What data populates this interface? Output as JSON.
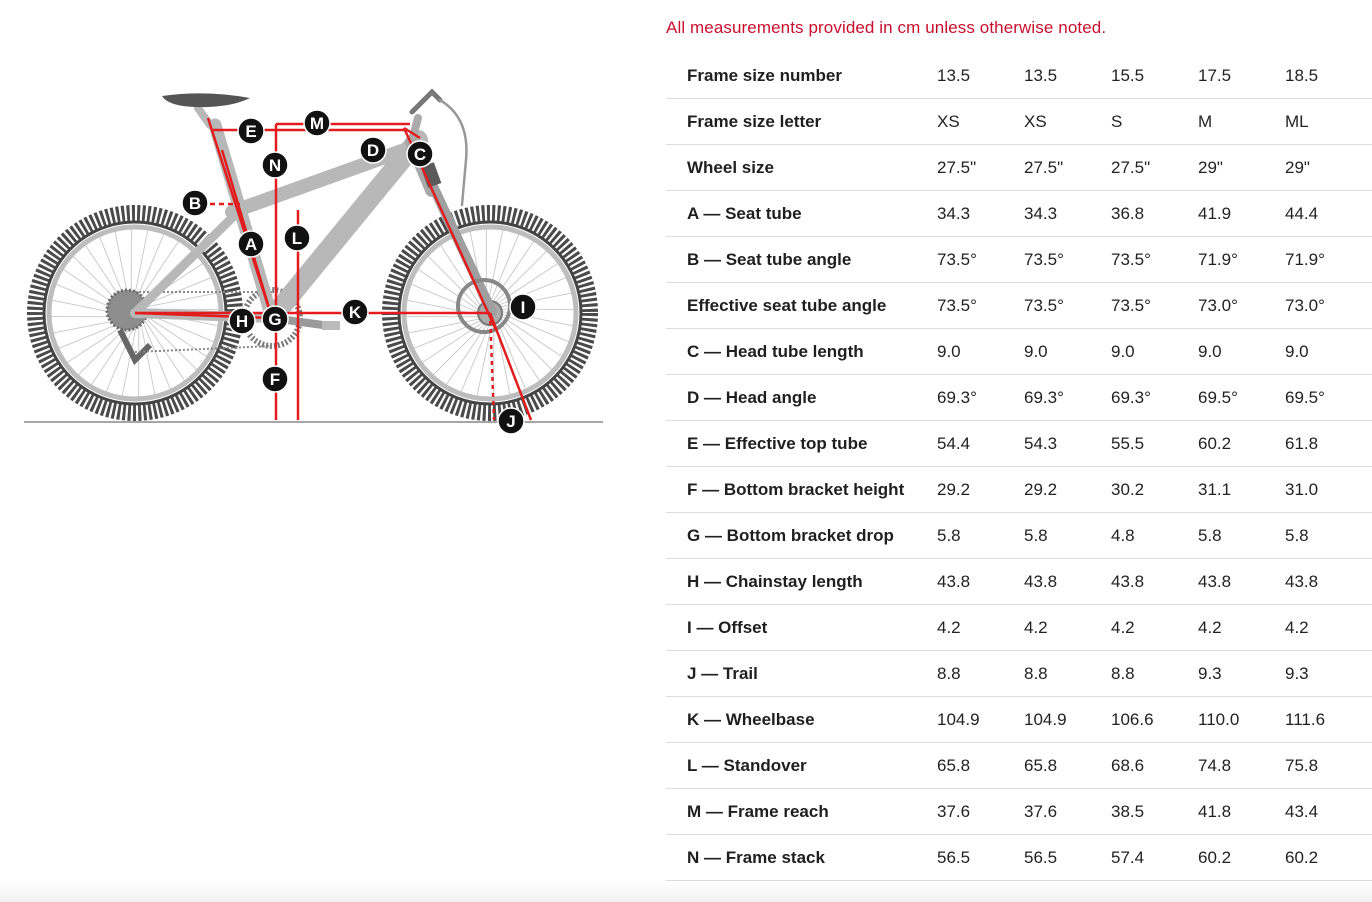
{
  "notice": "All measurements provided in cm unless otherwise noted.",
  "diagram": {
    "callouts": [
      "A",
      "B",
      "C",
      "D",
      "E",
      "F",
      "G",
      "H",
      "I",
      "J",
      "K",
      "L",
      "M",
      "N"
    ]
  },
  "table": {
    "rows": [
      {
        "label": "Frame size number",
        "values": [
          "13.5",
          "13.5",
          "15.5",
          "17.5",
          "18.5"
        ]
      },
      {
        "label": "Frame size letter",
        "values": [
          "XS",
          "XS",
          "S",
          "M",
          "ML"
        ]
      },
      {
        "label": "Wheel size",
        "values": [
          "27.5\"",
          "27.5\"",
          "27.5\"",
          "29\"",
          "29\""
        ]
      },
      {
        "label": "A — Seat tube",
        "values": [
          "34.3",
          "34.3",
          "36.8",
          "41.9",
          "44.4"
        ]
      },
      {
        "label": "B — Seat tube angle",
        "values": [
          "73.5°",
          "73.5°",
          "73.5°",
          "71.9°",
          "71.9°"
        ]
      },
      {
        "label": "Effective seat tube angle",
        "values": [
          "73.5°",
          "73.5°",
          "73.5°",
          "73.0°",
          "73.0°"
        ]
      },
      {
        "label": "C — Head tube length",
        "values": [
          "9.0",
          "9.0",
          "9.0",
          "9.0",
          "9.0"
        ]
      },
      {
        "label": "D — Head angle",
        "values": [
          "69.3°",
          "69.3°",
          "69.3°",
          "69.5°",
          "69.5°"
        ]
      },
      {
        "label": "E — Effective top tube",
        "values": [
          "54.4",
          "54.3",
          "55.5",
          "60.2",
          "61.8"
        ]
      },
      {
        "label": "F — Bottom bracket height",
        "values": [
          "29.2",
          "29.2",
          "30.2",
          "31.1",
          "31.0"
        ]
      },
      {
        "label": "G — Bottom bracket drop",
        "values": [
          "5.8",
          "5.8",
          "4.8",
          "5.8",
          "5.8"
        ]
      },
      {
        "label": "H — Chainstay length",
        "values": [
          "43.8",
          "43.8",
          "43.8",
          "43.8",
          "43.8"
        ]
      },
      {
        "label": "I — Offset",
        "values": [
          "4.2",
          "4.2",
          "4.2",
          "4.2",
          "4.2"
        ]
      },
      {
        "label": "J — Trail",
        "values": [
          "8.8",
          "8.8",
          "8.8",
          "9.3",
          "9.3"
        ]
      },
      {
        "label": "K — Wheelbase",
        "values": [
          "104.9",
          "104.9",
          "106.6",
          "110.0",
          "111.6"
        ]
      },
      {
        "label": "L — Standover",
        "values": [
          "65.8",
          "65.8",
          "68.6",
          "74.8",
          "75.8"
        ]
      },
      {
        "label": "M — Frame reach",
        "values": [
          "37.6",
          "37.6",
          "38.5",
          "41.8",
          "43.4"
        ]
      },
      {
        "label": "N — Frame stack",
        "values": [
          "56.5",
          "56.5",
          "57.4",
          "60.2",
          "60.2"
        ]
      }
    ]
  }
}
